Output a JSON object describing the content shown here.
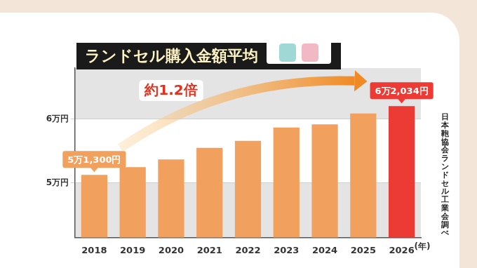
{
  "chart_data": {
    "type": "bar",
    "title": "ランドセル購入金額平均",
    "categories": [
      "2018",
      "2019",
      "2020",
      "2021",
      "2022",
      "2023",
      "2024",
      "2025",
      "2026"
    ],
    "values": [
      51300,
      52500,
      53700,
      55500,
      56600,
      58700,
      59200,
      60900,
      62034
    ],
    "value_labels": [
      "5万1,300円",
      null,
      null,
      null,
      null,
      null,
      null,
      null,
      "6万2,034円"
    ],
    "colors": [
      "#f2a05e",
      "#f2a05e",
      "#f2a05e",
      "#f2a05e",
      "#f2a05e",
      "#f2a05e",
      "#f2a05e",
      "#f2a05e",
      "#ec3b35"
    ],
    "ylim": [
      41500,
      68000
    ],
    "yticks": [
      {
        "value": 50000,
        "label": "5万円"
      },
      {
        "value": 60000,
        "label": "6万円"
      }
    ],
    "grid": true,
    "x_label": "(年)",
    "annotation": "約1.2倍",
    "source": "日本鞄協会ランドセル工業会調べ"
  }
}
